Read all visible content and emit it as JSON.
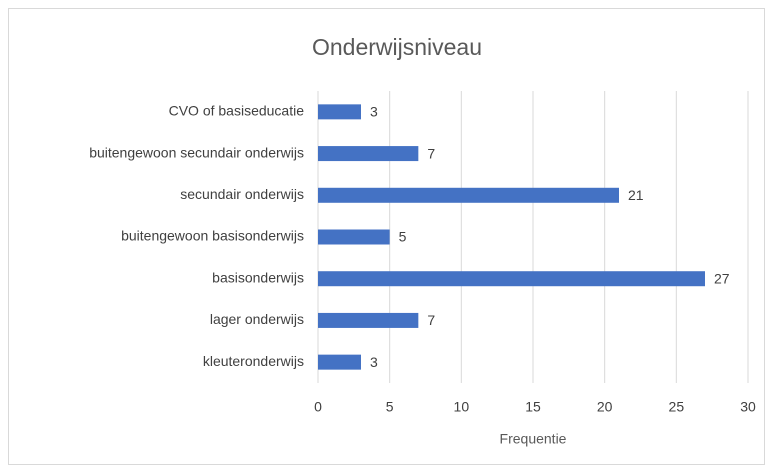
{
  "chart_data": {
    "type": "bar",
    "title": "Onderwijsniveau",
    "categories": [
      "CVO of basiseducatie",
      "buitengewoon secundair onderwijs",
      "secundair onderwijs",
      "buitengewoon basisonderwijs",
      "basisonderwijs",
      "lager onderwijs",
      "kleuteronderwijs"
    ],
    "values": [
      3,
      7,
      21,
      5,
      27,
      7,
      3
    ],
    "color": "#4472c4",
    "xlabel": "Frequentie",
    "xlim": [
      0,
      30
    ],
    "xticks": [
      0,
      5,
      10,
      15,
      20,
      25,
      30
    ],
    "grid": true
  }
}
